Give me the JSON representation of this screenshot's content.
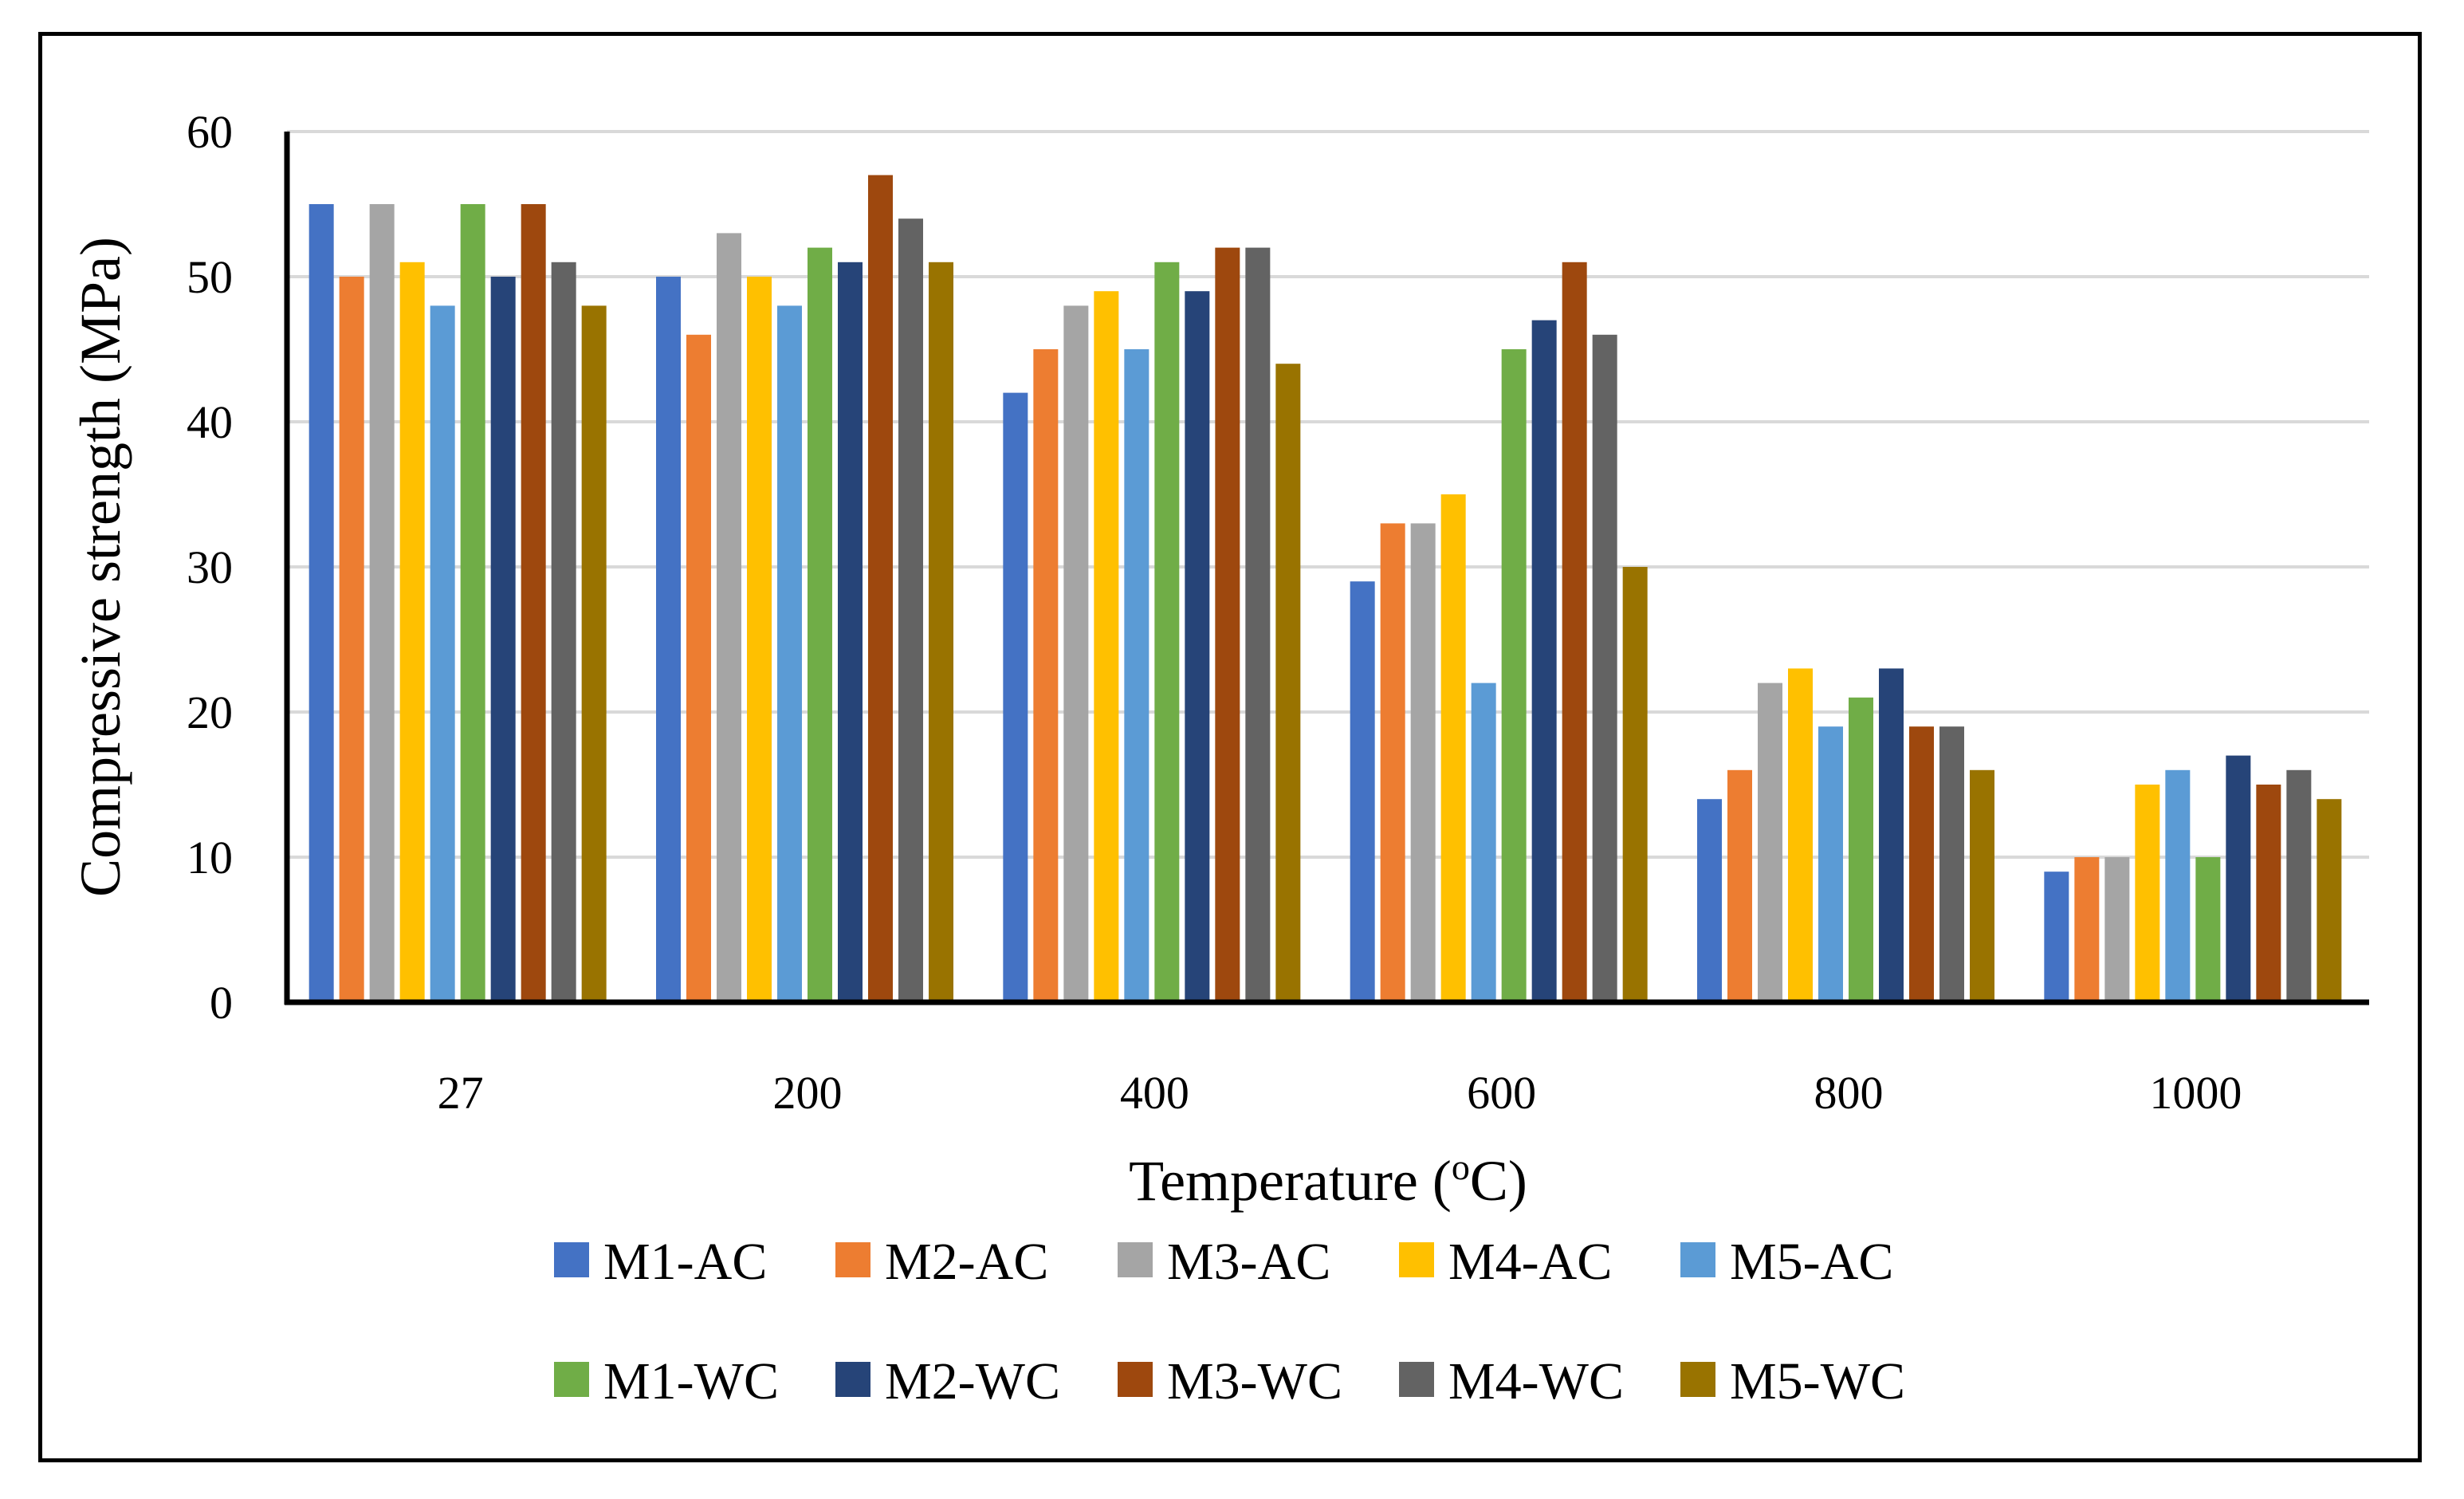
{
  "chart_data": {
    "type": "bar",
    "xlabel": "Temperature (",
    "xlabel_sup": "o",
    "xlabel_tail": "C)",
    "ylabel": "Compressive strength (MPa)",
    "ylim": [
      0,
      60
    ],
    "yticks": [
      "0",
      "10",
      "20",
      "30",
      "40",
      "50",
      "60"
    ],
    "grid": true,
    "legend_position": "bottom",
    "categories": [
      "27",
      "200",
      "400",
      "600",
      "800",
      "1000"
    ],
    "series": [
      {
        "name": "M1-AC",
        "color": "#4472C4",
        "values": [
          55,
          50,
          42,
          29,
          14,
          9
        ]
      },
      {
        "name": "M2-AC",
        "color": "#ED7D31",
        "values": [
          50,
          46,
          45,
          33,
          16,
          10
        ]
      },
      {
        "name": "M3-AC",
        "color": "#A5A5A5",
        "values": [
          55,
          53,
          48,
          33,
          22,
          10
        ]
      },
      {
        "name": "M4-AC",
        "color": "#FFC000",
        "values": [
          51,
          50,
          49,
          35,
          23,
          15
        ]
      },
      {
        "name": "M5-AC",
        "color": "#5B9BD5",
        "values": [
          48,
          48,
          45,
          22,
          19,
          16
        ]
      },
      {
        "name": "M1-WC",
        "color": "#70AD47",
        "values": [
          55,
          52,
          51,
          45,
          21,
          10
        ]
      },
      {
        "name": "M2-WC",
        "color": "#264478",
        "values": [
          50,
          51,
          49,
          47,
          23,
          17
        ]
      },
      {
        "name": "M3-WC",
        "color": "#9E480E",
        "values": [
          55,
          57,
          52,
          51,
          19,
          15
        ]
      },
      {
        "name": "M4-WC",
        "color": "#636363",
        "values": [
          51,
          54,
          52,
          46,
          19,
          16
        ]
      },
      {
        "name": "M5-WC",
        "color": "#997300",
        "values": [
          48,
          51,
          44,
          30,
          16,
          14
        ]
      }
    ]
  }
}
